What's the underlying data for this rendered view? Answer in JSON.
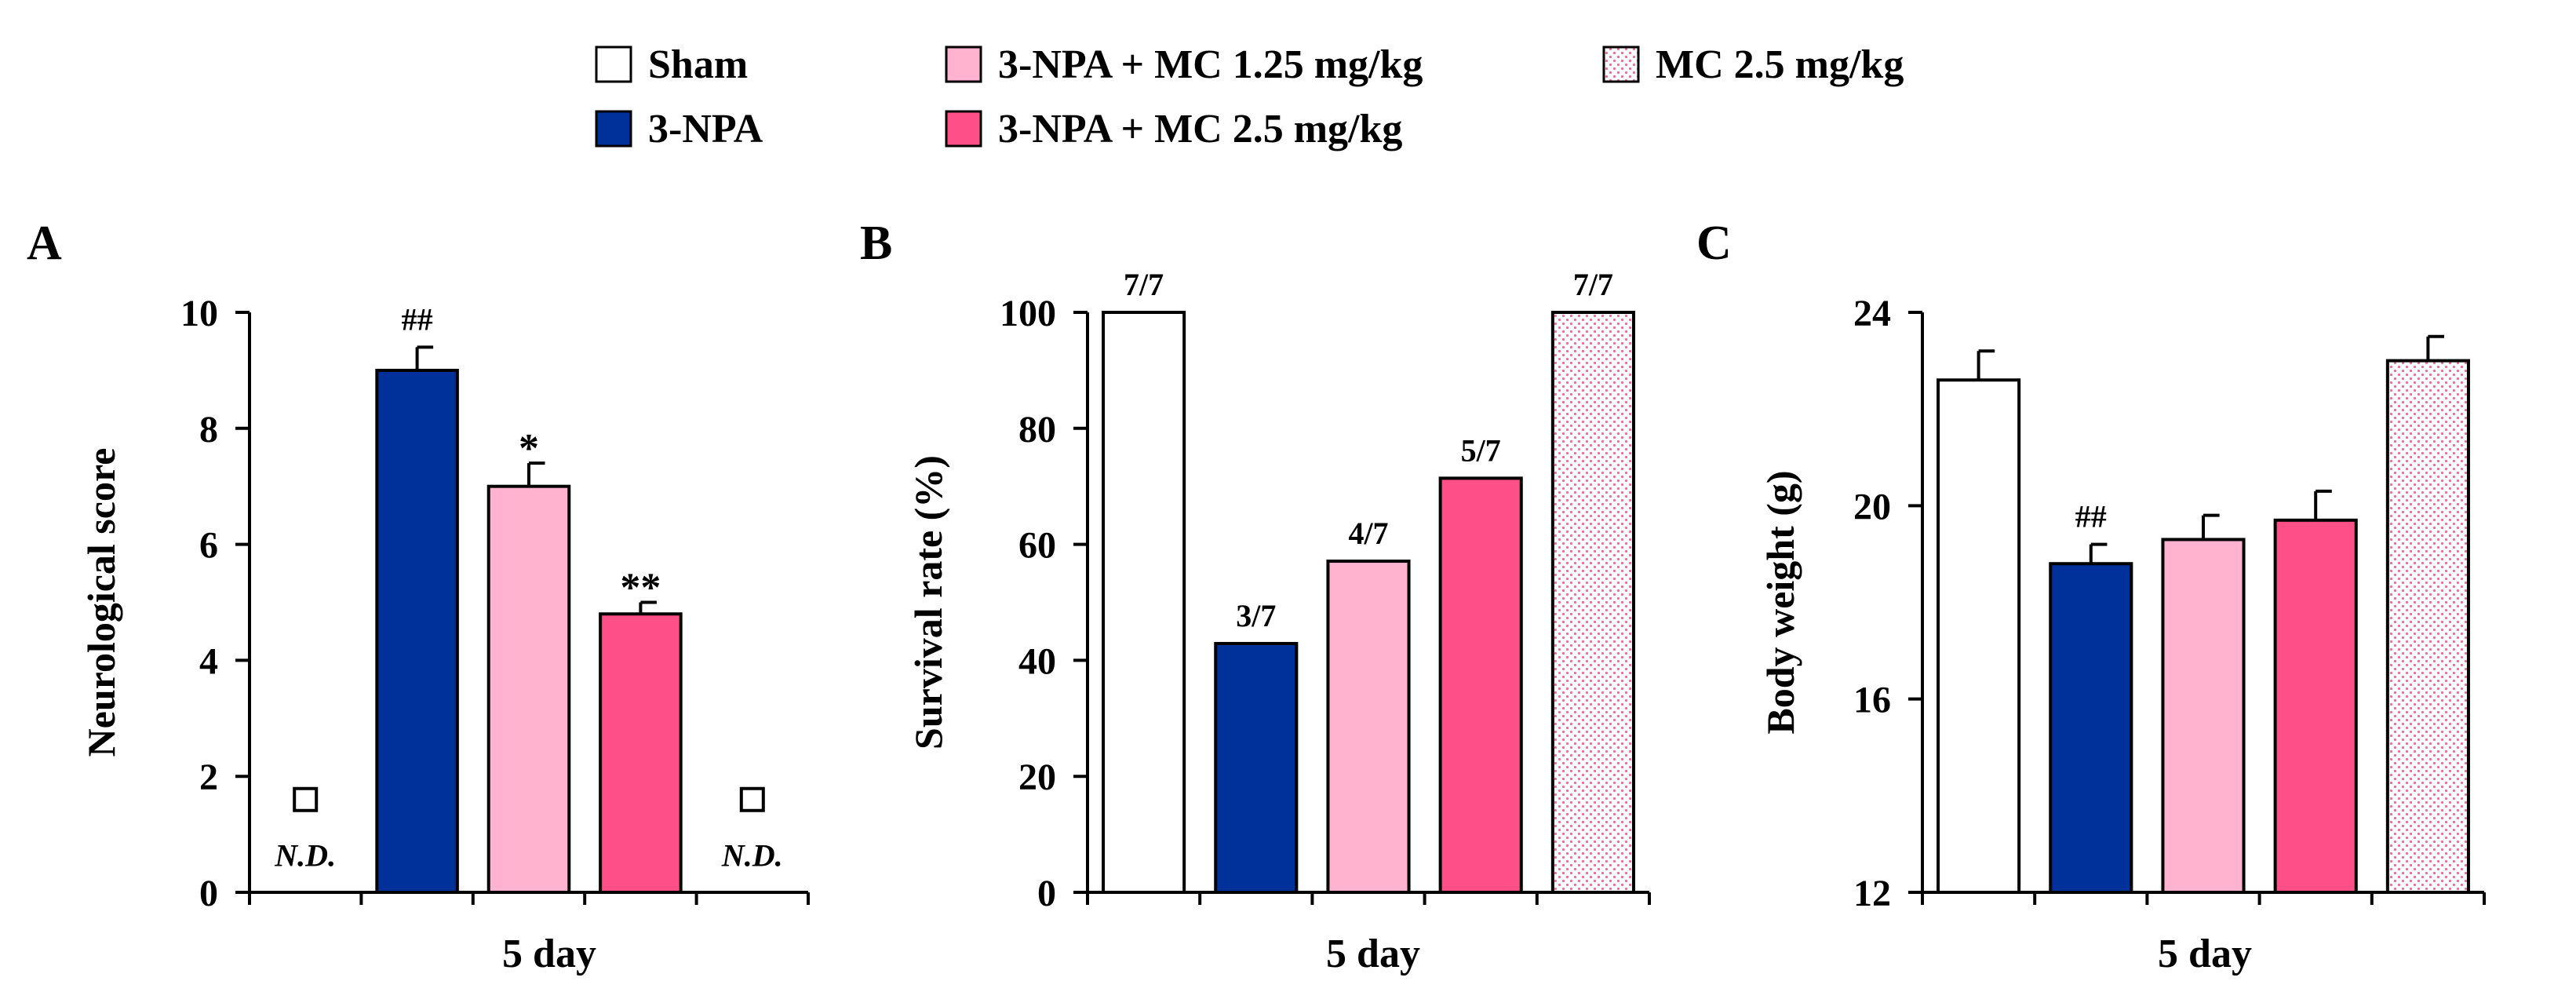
{
  "legend": [
    {
      "label": "Sham",
      "color": "#ffffff",
      "pattern": "none"
    },
    {
      "label": "3-NPA",
      "color": "#00309a",
      "pattern": "none"
    },
    {
      "label": "3-NPA + MC 1.25 mg/kg",
      "color": "#ffb3cf",
      "pattern": "none"
    },
    {
      "label": "3-NPA + MC 2.5 mg/kg",
      "color": "#ff4f88",
      "pattern": "none"
    },
    {
      "label": "MC 2.5 mg/kg",
      "color": "#ffffff",
      "pattern": "dots"
    }
  ],
  "chart_data": [
    {
      "panel": "A",
      "type": "bar",
      "ylabel": "Neurological score",
      "xlabel": "5 day",
      "ylim": [
        0,
        10
      ],
      "yticks": [
        "0",
        "2",
        "4",
        "6",
        "8",
        "10"
      ],
      "categories": [
        "Sham",
        "3-NPA",
        "3-NPA + MC 1.25 mg/kg",
        "3-NPA + MC 2.5 mg/kg",
        "MC 2.5 mg/kg"
      ],
      "values": [
        null,
        9.0,
        7.0,
        4.8,
        null
      ],
      "errors": [
        null,
        0.4,
        0.4,
        0.2,
        null
      ],
      "annotations": [
        "",
        "##",
        "*",
        "**",
        ""
      ],
      "not_determined": [
        true,
        false,
        false,
        false,
        true
      ],
      "nd_label": "N.D."
    },
    {
      "panel": "B",
      "type": "bar",
      "ylabel": "Survival rate (%)",
      "xlabel": "5 day",
      "ylim": [
        0,
        100
      ],
      "yticks": [
        "0",
        "20",
        "40",
        "60",
        "80",
        "100"
      ],
      "categories": [
        "Sham",
        "3-NPA",
        "3-NPA + MC 1.25 mg/kg",
        "3-NPA + MC 2.5 mg/kg",
        "MC 2.5 mg/kg"
      ],
      "values": [
        100,
        42.9,
        57.1,
        71.4,
        100
      ],
      "annotations": [
        "7/7",
        "3/7",
        "4/7",
        "5/7",
        "7/7"
      ]
    },
    {
      "panel": "C",
      "type": "bar",
      "ylabel": "Body weight (g)",
      "xlabel": "5 day",
      "ylim": [
        12,
        24
      ],
      "yticks": [
        "12",
        "16",
        "20",
        "24"
      ],
      "categories": [
        "Sham",
        "3-NPA",
        "3-NPA + MC 1.25 mg/kg",
        "3-NPA + MC 2.5 mg/kg",
        "MC 2.5 mg/kg"
      ],
      "values": [
        22.6,
        18.8,
        19.3,
        19.7,
        23.0
      ],
      "errors": [
        0.6,
        0.4,
        0.5,
        0.6,
        0.5
      ],
      "annotations": [
        "",
        "##",
        "",
        "",
        ""
      ]
    }
  ]
}
